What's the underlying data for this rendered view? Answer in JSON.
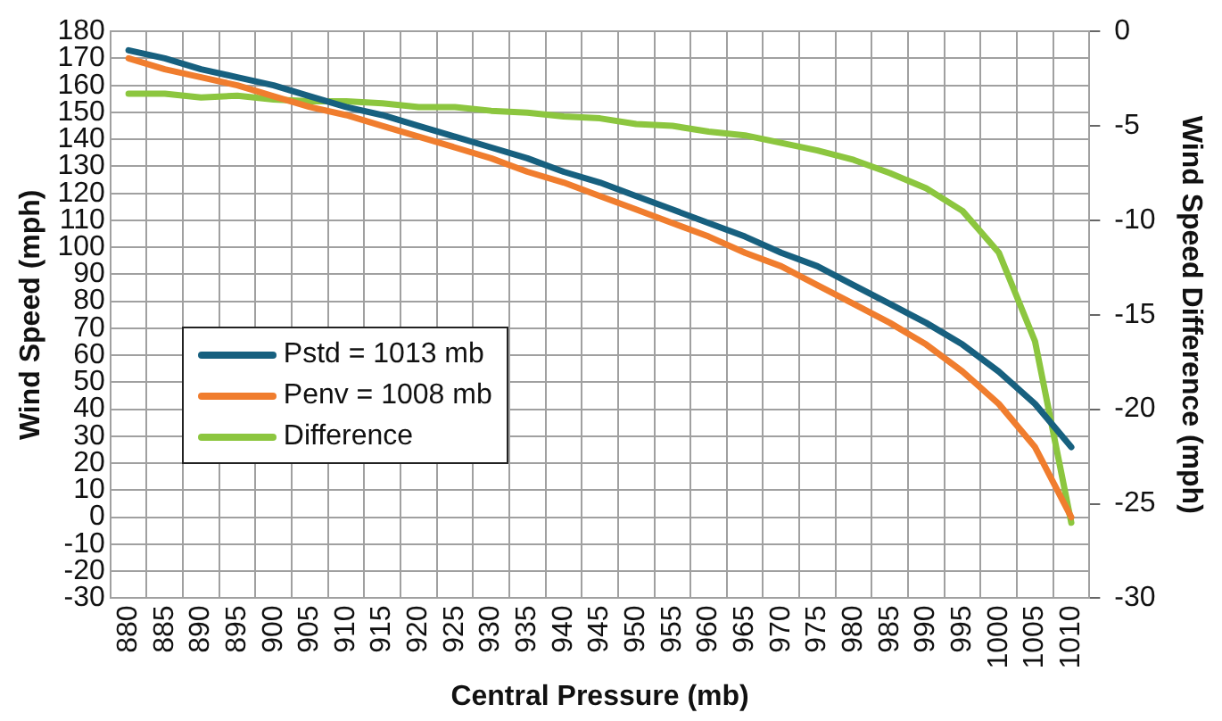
{
  "chart_data": {
    "type": "line",
    "xlabel": "Central Pressure (mb)",
    "ylabel": "Wind Speed (mph)",
    "y2label": "Wind Speed Difference (mph)",
    "categories": [
      "880",
      "885",
      "890",
      "895",
      "900",
      "905",
      "910",
      "915",
      "920",
      "925",
      "930",
      "935",
      "940",
      "945",
      "950",
      "955",
      "960",
      "965",
      "970",
      "975",
      "980",
      "985",
      "990",
      "995",
      "1000",
      "1005",
      "1010"
    ],
    "series": [
      {
        "name": "Pstd = 1013 mb",
        "color": "#17607f",
        "values": [
          173,
          170,
          166,
          163,
          160,
          156,
          152,
          149,
          145,
          141,
          137,
          133,
          128,
          124,
          119,
          114,
          109,
          104,
          98,
          93,
          86,
          79,
          72,
          64,
          54,
          42,
          26
        ]
      },
      {
        "name": "Penv = 1008 mb",
        "color": "#f07d2e",
        "values": [
          170,
          166,
          163,
          160,
          156,
          152,
          149,
          145,
          141,
          137,
          133,
          128,
          124,
          119,
          114,
          109,
          104,
          98,
          93,
          86,
          79,
          72,
          64,
          54,
          42,
          26,
          0
        ]
      },
      {
        "name": "Difference",
        "color": "#8cc63f",
        "axis": "y2",
        "values": [
          -3.3,
          -3.3,
          -3.5,
          -3.4,
          -3.6,
          -3.7,
          -3.7,
          -3.8,
          -4.0,
          -4.0,
          -4.2,
          -4.3,
          -4.5,
          -4.6,
          -4.9,
          -5.0,
          -5.3,
          -5.5,
          -5.9,
          -6.3,
          -6.8,
          -7.5,
          -8.3,
          -9.5,
          -11.7,
          -16.4,
          -26.0
        ]
      }
    ],
    "ylim": [
      -30,
      180
    ],
    "yticks": [
      -30,
      -20,
      -10,
      0,
      10,
      20,
      30,
      40,
      50,
      60,
      70,
      80,
      90,
      100,
      110,
      120,
      130,
      140,
      150,
      160,
      170,
      180
    ],
    "y2lim": [
      -30,
      0
    ],
    "y2ticks": [
      -30,
      -25,
      -20,
      -15,
      -10,
      -5,
      0
    ],
    "grid": true,
    "legend": "bottom left",
    "marker": "none",
    "line_style": "solid"
  }
}
